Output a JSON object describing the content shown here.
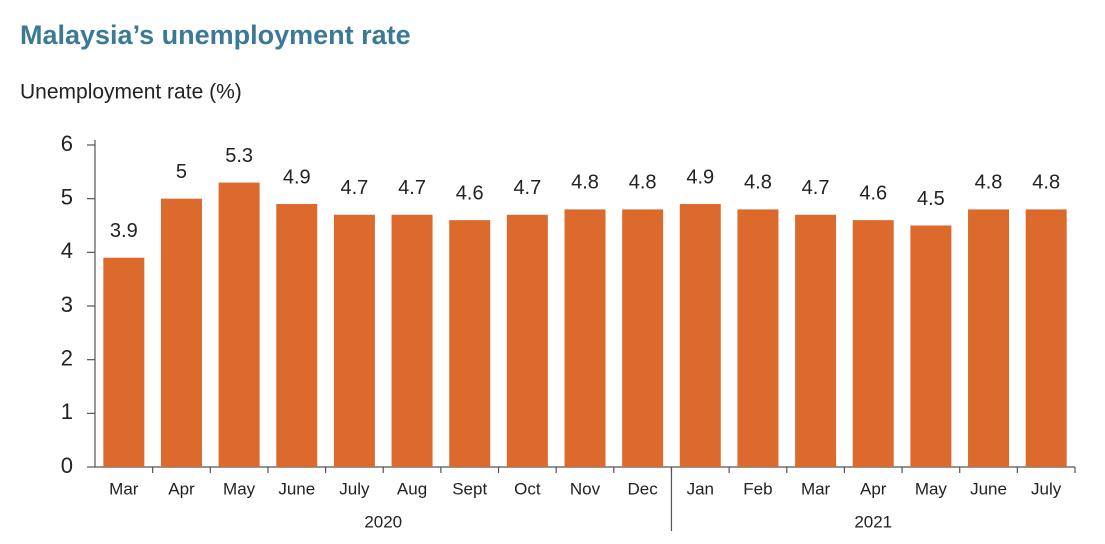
{
  "chart_data": {
    "type": "bar",
    "title": "Malaysia’s unemployment rate",
    "subtitle": "Unemployment rate (%)",
    "color": "#dc6a2c",
    "groups": [
      {
        "label": "2020",
        "categories": [
          "Mar",
          "Apr",
          "May",
          "June",
          "July",
          "Aug",
          "Sept",
          "Oct",
          "Nov",
          "Dec"
        ],
        "values": [
          3.9,
          5,
          5.3,
          4.9,
          4.7,
          4.7,
          4.6,
          4.7,
          4.8,
          4.8
        ]
      },
      {
        "label": "2021",
        "categories": [
          "Jan",
          "Feb",
          "Mar",
          "Apr",
          "May",
          "June",
          "July"
        ],
        "values": [
          4.9,
          4.8,
          4.7,
          4.6,
          4.5,
          4.8,
          4.8
        ]
      }
    ],
    "ylim": [
      0,
      6
    ],
    "yticks": [
      0,
      1,
      2,
      3,
      4,
      5,
      6
    ]
  }
}
